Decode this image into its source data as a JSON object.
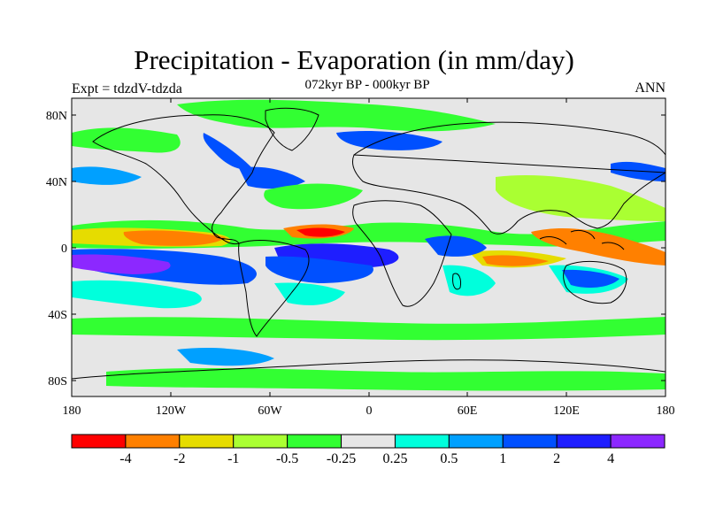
{
  "title": "Precipitation - Evaporation (in mm/day)",
  "subtitle": "072kyr BP - 000kyr BP",
  "left_label": "Expt = tdzdV-tdzda",
  "right_label": "ANN",
  "y_ticks": [
    "80N",
    "40N",
    "0",
    "40S",
    "80S"
  ],
  "x_ticks": [
    "180",
    "120W",
    "60W",
    "0",
    "60E",
    "120E",
    "180"
  ],
  "colorbar": {
    "colors": [
      "#ff0000",
      "#ff8000",
      "#e6dc00",
      "#aaff32",
      "#32ff32",
      "#e6e6e6",
      "#00ffdc",
      "#00a0ff",
      "#0050ff",
      "#1e1eff",
      "#8c28ff"
    ],
    "labels": [
      "-4",
      "-2",
      "-1",
      "-0.5",
      "-0.25",
      "0.25",
      "0.5",
      "1",
      "2",
      "4"
    ]
  }
}
